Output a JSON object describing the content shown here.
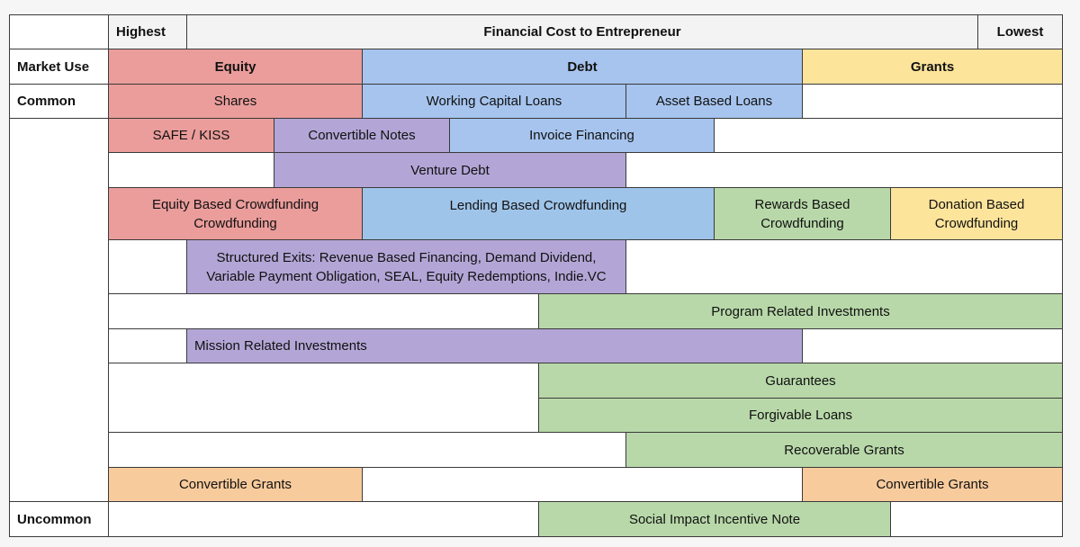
{
  "header": {
    "highest": "Highest",
    "title": "Financial Cost to Entrepreneur",
    "lowest": "Lowest"
  },
  "row_labels": {
    "market_use": "Market Use",
    "common": "Common",
    "uncommon": "Uncommon"
  },
  "market_use": {
    "equity": "Equity",
    "debt": "Debt",
    "grants": "Grants"
  },
  "instruments": {
    "shares": "Shares",
    "working_capital_loans": "Working Capital Loans",
    "asset_based_loans": "Asset Based Loans",
    "safe_kiss": "SAFE / KISS",
    "convertible_notes": "Convertible Notes",
    "invoice_financing": "Invoice Financing",
    "venture_debt": "Venture Debt",
    "equity_crowdfunding": "Equity Based Crowdfunding Crowdfunding",
    "lending_crowdfunding": "Lending Based Crowdfunding",
    "rewards_crowdfunding": "Rewards Based Crowdfunding",
    "donation_crowdfunding": "Donation Based Crowdfunding",
    "structured_exits": "Structured Exits: Revenue Based Financing, Demand Dividend, Variable Payment Obligation, SEAL, Equity Redemptions, Indie.VC",
    "program_related_investments": "Program Related Investments",
    "mission_related_investments": "Mission Related Investments",
    "guarantees": "Guarantees",
    "forgivable_loans": "Forgivable Loans",
    "recoverable_grants": "Recoverable Grants",
    "convertible_grants_left": "Convertible Grants",
    "convertible_grants_right": "Convertible Grants",
    "social_impact_incentive_note": "Social Impact Incentive Note"
  },
  "colors": {
    "equity": "#ea9d9b",
    "debt": "#a6c4ee",
    "hybrid": "#b3a6d6",
    "grant_like": "#b8d8a9",
    "grants": "#fde49b",
    "convertible_grants": "#f8cb9d"
  }
}
